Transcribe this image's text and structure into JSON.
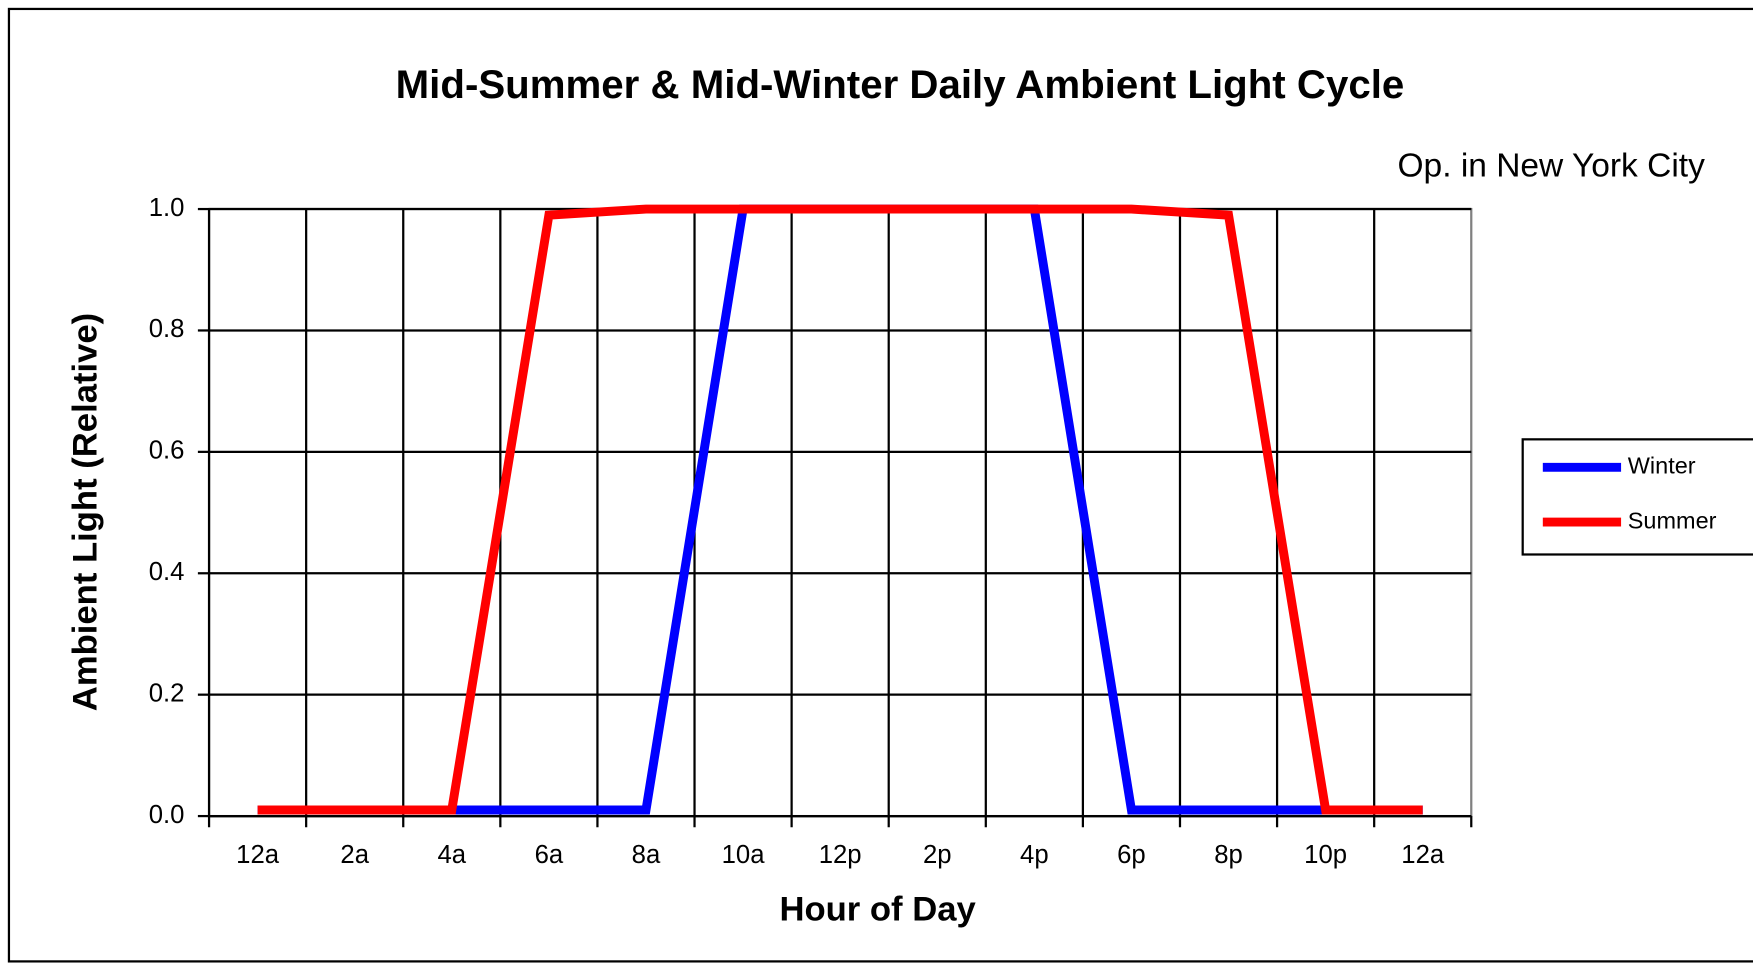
{
  "chart_data": {
    "type": "line",
    "title": "Mid-Summer & Mid-Winter Daily Ambient Light Cycle",
    "subtitle": "Op. in New York City",
    "x_label": "Hour of Day",
    "y_label": "Ambient Light (Relative)",
    "categories": [
      "12a",
      "2a",
      "4a",
      "6a",
      "8a",
      "10a",
      "12p",
      "2p",
      "4p",
      "6p",
      "8p",
      "10p",
      "12a"
    ],
    "series": [
      {
        "name": "Winter",
        "color": "#0000ff",
        "values": [
          0.01,
          0.01,
          0.01,
          0.01,
          0.01,
          1.0,
          1.0,
          1.0,
          1.0,
          0.01,
          0.01,
          0.01,
          0.01
        ]
      },
      {
        "name": "Summer",
        "color": "#ff0000",
        "values": [
          0.01,
          0.01,
          0.01,
          0.99,
          1.0,
          1.0,
          1.0,
          1.0,
          1.0,
          1.0,
          0.99,
          0.01,
          0.01
        ]
      }
    ],
    "ylim": [
      0,
      1
    ],
    "yticks": [
      {
        "value": 0,
        "label": "0.0"
      },
      0.2,
      0.4,
      0.6,
      0.8,
      {
        "value": 1,
        "label": "1.0"
      }
    ],
    "grid": true,
    "legend": "right"
  }
}
